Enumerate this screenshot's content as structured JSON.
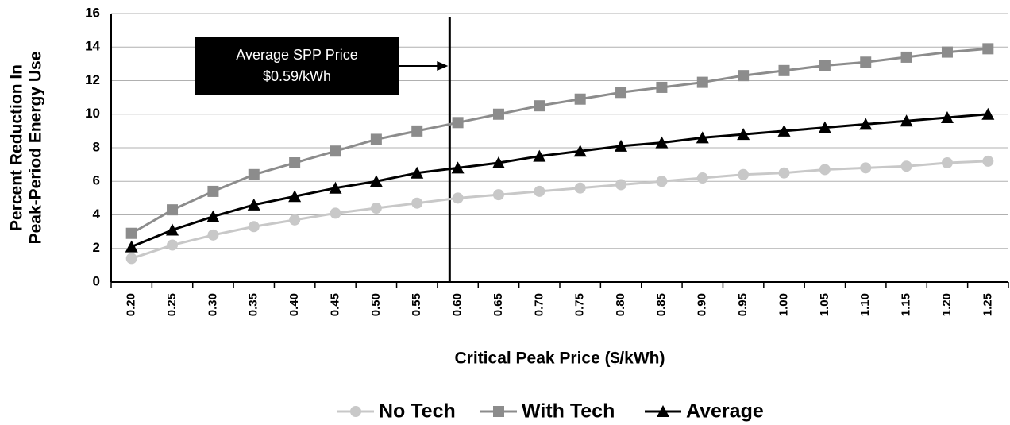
{
  "chart_data": {
    "type": "line",
    "categories": [
      "0.20",
      "0.25",
      "0.30",
      "0.35",
      "0.40",
      "0.45",
      "0.50",
      "0.55",
      "0.60",
      "0.65",
      "0.70",
      "0.75",
      "0.80",
      "0.85",
      "0.90",
      "0.95",
      "1.00",
      "1.05",
      "1.10",
      "1.15",
      "1.20",
      "1.25"
    ],
    "series": [
      {
        "name": "No Tech",
        "color": "#c8c8c8",
        "marker": "circle",
        "values": [
          1.4,
          2.2,
          2.8,
          3.3,
          3.7,
          4.1,
          4.4,
          4.7,
          5.0,
          5.2,
          5.4,
          5.6,
          5.8,
          6.0,
          6.2,
          6.4,
          6.5,
          6.7,
          6.8,
          6.9,
          7.1,
          7.2
        ]
      },
      {
        "name": "With Tech",
        "color": "#8c8c8c",
        "marker": "square",
        "values": [
          2.9,
          4.3,
          5.4,
          6.4,
          7.1,
          7.8,
          8.5,
          9.0,
          9.5,
          10.0,
          10.5,
          10.9,
          11.3,
          11.6,
          11.9,
          12.3,
          12.6,
          12.9,
          13.1,
          13.4,
          13.7,
          13.9
        ]
      },
      {
        "name": "Average",
        "color": "#000000",
        "marker": "triangle",
        "values": [
          2.1,
          3.1,
          3.9,
          4.6,
          5.1,
          5.6,
          6.0,
          6.5,
          6.8,
          7.1,
          7.5,
          7.8,
          8.1,
          8.3,
          8.6,
          8.8,
          9.0,
          9.2,
          9.4,
          9.6,
          9.8,
          10.0
        ]
      }
    ],
    "ylim": [
      0,
      16
    ],
    "yticks": [
      0,
      2,
      4,
      6,
      8,
      10,
      12,
      14,
      16
    ],
    "grid": true,
    "x_label": "Critical Peak Price ($/kWh)",
    "y_label": [
      "Percent Reduction In",
      "Peak-Period Energy Use"
    ],
    "reference_line": {
      "value": 0.59,
      "label": [
        "Average SPP Price",
        "$0.59/kWh"
      ]
    },
    "legend": "bottom"
  }
}
